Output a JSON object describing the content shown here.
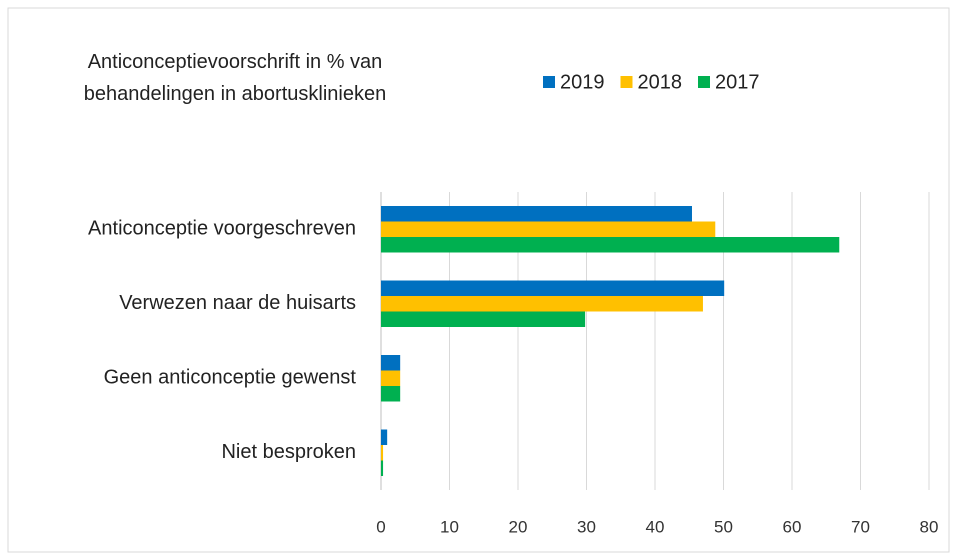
{
  "chart_data": {
    "type": "hbar",
    "title": "Anticonceptievoorschrift in % van\nbehandelingen in abortusklinieken",
    "categories": [
      "Anticonceptie voorgeschreven",
      "Verwezen naar de huisarts",
      "Geen anticonceptie gewenst",
      "Niet besproken"
    ],
    "series": [
      {
        "name": "2019",
        "color": "#0070c0",
        "values": [
          45.4,
          50.1,
          2.8,
          0.9
        ]
      },
      {
        "name": "2018",
        "color": "#ffc000",
        "values": [
          48.8,
          47.0,
          2.8,
          0.3
        ]
      },
      {
        "name": "2017",
        "color": "#00b050",
        "values": [
          66.9,
          29.8,
          2.8,
          0.3
        ]
      }
    ],
    "xlim": [
      0,
      80
    ],
    "xticks": [
      0,
      10,
      20,
      30,
      40,
      50,
      60,
      70,
      80
    ],
    "grid": true,
    "legend": "top"
  }
}
